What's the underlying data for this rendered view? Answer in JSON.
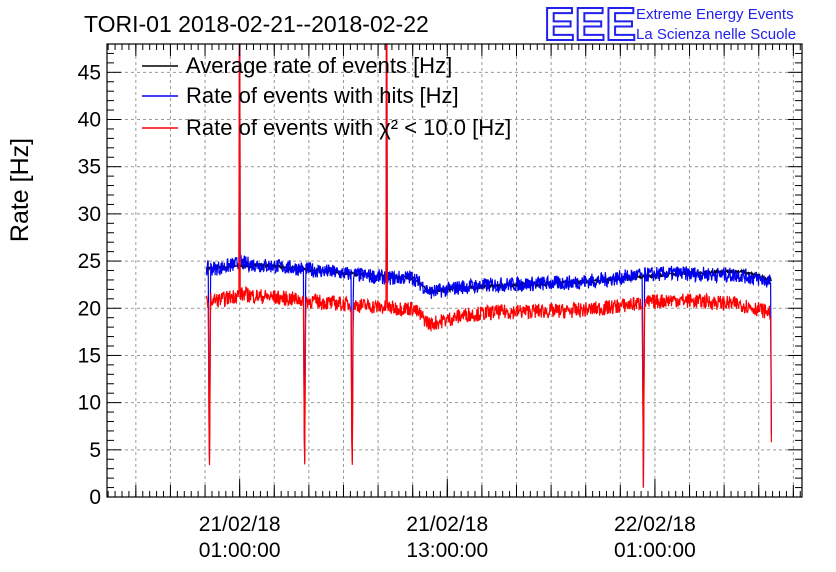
{
  "colors": {
    "average": "#000000",
    "hits": "#0000ee",
    "chi2": "#ff0000",
    "logo": "#2222ee",
    "grid": "#999999"
  },
  "logo": {
    "mark": "EEE",
    "line1": "Extreme Energy Events",
    "line2": "La Scienza nelle Scuole"
  },
  "chart_data": {
    "type": "line",
    "title": "TORI-01 2018-02-21--2018-02-22",
    "xlabel": "",
    "ylabel": "Rate [Hz]",
    "ylim": [
      0,
      48
    ],
    "xlim": [
      "2018-02-20 17:20:00",
      "2018-02-22 09:30:00"
    ],
    "x_ticks": [
      {
        "date": "21/02/18",
        "time": "01:00:00",
        "at": "2018-02-21 01:00:00"
      },
      {
        "date": "21/02/18",
        "time": "13:00:00",
        "at": "2018-02-21 13:00:00"
      },
      {
        "date": "22/02/18",
        "time": "01:00:00",
        "at": "2018-02-22 01:00:00"
      }
    ],
    "y_ticks": [
      0,
      5,
      10,
      15,
      20,
      25,
      30,
      35,
      40,
      45
    ],
    "grid": true,
    "legend_position": "top-left",
    "series": [
      {
        "name": "Average rate of events [Hz]",
        "color": "#000000",
        "x": [
          "2018-02-20 23:05",
          "2018-02-21 02:00",
          "2018-02-21 06:00",
          "2018-02-21 09:00",
          "2018-02-21 11:00",
          "2018-02-21 12:00",
          "2018-02-21 16:00",
          "2018-02-21 20:00",
          "2018-02-22 00:00",
          "2018-02-22 02:00",
          "2018-02-22 04:00",
          "2018-02-22 06:00",
          "2018-02-22 07:45"
        ],
        "y": [
          24.2,
          24.6,
          23.9,
          23.4,
          23.2,
          21.8,
          22.4,
          22.7,
          23.3,
          23.6,
          23.8,
          23.9,
          23.0
        ]
      },
      {
        "name": "Rate of events with hits [Hz]",
        "color": "#0000ee",
        "x": [
          "2018-02-20 23:05",
          "2018-02-21 00:00",
          "2018-02-21 01:00",
          "2018-02-21 02:00",
          "2018-02-21 04:00",
          "2018-02-21 06:00",
          "2018-02-21 08:00",
          "2018-02-21 10:00",
          "2018-02-21 11:00",
          "2018-02-21 12:00",
          "2018-02-21 14:00",
          "2018-02-21 16:00",
          "2018-02-21 18:00",
          "2018-02-21 20:00",
          "2018-02-21 22:00",
          "2018-02-22 00:00",
          "2018-02-22 02:00",
          "2018-02-22 04:00",
          "2018-02-22 06:00",
          "2018-02-22 07:45"
        ],
        "y": [
          24.2,
          24.3,
          24.8,
          24.6,
          24.3,
          23.9,
          23.5,
          23.2,
          23.3,
          21.7,
          22.3,
          22.5,
          22.6,
          22.7,
          23.0,
          23.5,
          23.7,
          23.6,
          23.5,
          22.8
        ]
      },
      {
        "name": "Rate of events with χ² < 10.0 [Hz]",
        "color": "#ff0000",
        "x": [
          "2018-02-20 23:05",
          "2018-02-21 00:00",
          "2018-02-21 01:00",
          "2018-02-21 02:00",
          "2018-02-21 04:00",
          "2018-02-21 06:00",
          "2018-02-21 08:00",
          "2018-02-21 10:00",
          "2018-02-21 11:00",
          "2018-02-21 12:00",
          "2018-02-21 14:00",
          "2018-02-21 16:00",
          "2018-02-21 18:00",
          "2018-02-21 20:00",
          "2018-02-21 22:00",
          "2018-02-22 00:00",
          "2018-02-22 02:00",
          "2018-02-22 04:00",
          "2018-02-22 06:00",
          "2018-02-22 07:45"
        ],
        "y": [
          20.8,
          20.9,
          21.5,
          21.3,
          21.0,
          20.6,
          20.3,
          20.0,
          20.0,
          18.3,
          19.3,
          19.6,
          19.7,
          19.7,
          20.0,
          20.5,
          20.9,
          20.7,
          20.4,
          19.5
        ]
      }
    ],
    "dips": [
      {
        "at": "2018-02-20 23:15",
        "min": 1
      },
      {
        "at": "2018-02-21 04:45",
        "min": 1
      },
      {
        "at": "2018-02-21 07:30",
        "min": 1
      },
      {
        "at": "2018-02-22 00:20",
        "min": 1
      },
      {
        "at": "2018-02-22 07:45",
        "min": 1
      }
    ],
    "spikes": [
      {
        "at": "2018-02-21 01:00",
        "max": 48
      },
      {
        "at": "2018-02-21 09:30",
        "max": 48
      }
    ]
  }
}
